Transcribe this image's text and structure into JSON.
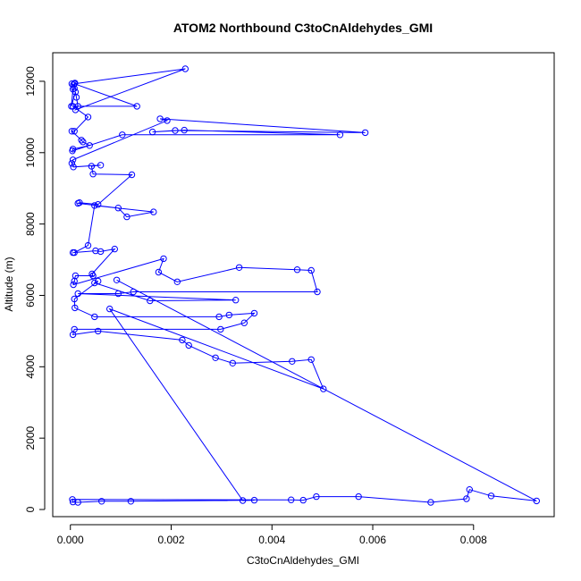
{
  "chart_data": {
    "type": "line",
    "title": "ATOM2 Northbound C3toCnAldehydes_GMI",
    "xlabel": "C3toCnAldehydes_GMI",
    "ylabel": "Altitude (m)",
    "xlim": [
      -0.00035,
      0.0096
    ],
    "ylim": [
      -200,
      12800
    ],
    "x_ticks": [
      0,
      0.002,
      0.004,
      0.006,
      0.008
    ],
    "x_tick_labels": [
      "0.000",
      "0.002",
      "0.004",
      "0.006",
      "0.008"
    ],
    "y_ticks": [
      0,
      2000,
      4000,
      6000,
      8000,
      10000,
      12000
    ],
    "y_tick_labels": [
      "0",
      "2000",
      "4000",
      "6000",
      "8000",
      "10000",
      "12000"
    ],
    "grid": false,
    "series": [
      {
        "color": "#0000ff",
        "points": [
          [
            3e-05,
            11930
          ],
          [
            6e-05,
            11900
          ],
          [
            9e-05,
            11950
          ],
          [
            8e-05,
            11800
          ],
          [
            5e-05,
            11780
          ],
          [
            2e-05,
            11300
          ],
          [
            0.0001,
            11700
          ],
          [
            0.00012,
            11550
          ],
          [
            0.00015,
            11300
          ],
          [
            0.0001,
            11200
          ],
          [
            0.00228,
            12350
          ],
          [
            8e-05,
            11930
          ],
          [
            0.00132,
            11300
          ],
          [
            5e-05,
            11300
          ],
          [
            0.00035,
            11000
          ],
          [
            8e-05,
            10600
          ],
          [
            3e-05,
            10600
          ],
          [
            0.00022,
            10350
          ],
          [
            0.00025,
            10300
          ],
          [
            0.00038,
            10200
          ],
          [
            5e-05,
            10100
          ],
          [
            4e-05,
            10050
          ],
          [
            0.00103,
            10500
          ],
          [
            0.00535,
            10500
          ],
          [
            0.00226,
            10630
          ],
          [
            0.00163,
            10580
          ],
          [
            0.00208,
            10620
          ],
          [
            0.00585,
            10560
          ],
          [
            0.00178,
            10950
          ],
          [
            0.00192,
            10900
          ],
          [
            5e-05,
            9800
          ],
          [
            3e-05,
            9700
          ],
          [
            6e-05,
            9600
          ],
          [
            0.0006,
            9650
          ],
          [
            0.00042,
            9620
          ],
          [
            0.00045,
            9400
          ],
          [
            0.00122,
            9380
          ],
          [
            0.00055,
            8550
          ],
          [
            0.00018,
            8600
          ],
          [
            0.00015,
            8580
          ],
          [
            0.00095,
            8450
          ],
          [
            0.00112,
            8200
          ],
          [
            0.00165,
            8340
          ],
          [
            0.00048,
            8520
          ],
          [
            0.00035,
            7400
          ],
          [
            8e-05,
            7200
          ],
          [
            5e-05,
            7200
          ],
          [
            0.0005,
            7250
          ],
          [
            0.0006,
            7230
          ],
          [
            0.00088,
            7300
          ],
          [
            0.00043,
            6600
          ],
          [
            0.00045,
            6550
          ],
          [
            0.0001,
            6550
          ],
          [
            8e-05,
            6400
          ],
          [
            6e-05,
            6300
          ],
          [
            0.00185,
            7030
          ],
          [
            0.00175,
            6650
          ],
          [
            0.00212,
            6380
          ],
          [
            0.00335,
            6780
          ],
          [
            0.0045,
            6720
          ],
          [
            0.00478,
            6700
          ],
          [
            0.0049,
            6100
          ],
          [
            0.00125,
            6100
          ],
          [
            0.00095,
            6050
          ],
          [
            0.00015,
            6050
          ],
          [
            0.00328,
            5870
          ],
          [
            0.00158,
            5850
          ],
          [
            0.00048,
            6350
          ],
          [
            0.00055,
            6400
          ],
          [
            8e-05,
            5900
          ],
          [
            9e-05,
            5650
          ],
          [
            0.00048,
            5400
          ],
          [
            0.00295,
            5400
          ],
          [
            0.00315,
            5450
          ],
          [
            0.00365,
            5500
          ],
          [
            0.00345,
            5230
          ],
          [
            0.00298,
            5050
          ],
          [
            8e-05,
            5050
          ],
          [
            5e-05,
            4900
          ],
          [
            0.00055,
            5000
          ],
          [
            0.00222,
            4750
          ],
          [
            0.00235,
            4600
          ],
          [
            0.00288,
            4250
          ],
          [
            0.00322,
            4100
          ],
          [
            0.0044,
            4150
          ],
          [
            0.00478,
            4200
          ],
          [
            0.00502,
            3380
          ],
          [
            0.00078,
            5620
          ],
          [
            0.00342,
            250
          ],
          [
            0.00365,
            260
          ],
          [
            0.0012,
            230
          ],
          [
            0.00062,
            230
          ],
          [
            0.00015,
            200
          ],
          [
            5e-05,
            210
          ],
          [
            4e-05,
            280
          ],
          [
            0.00438,
            270
          ],
          [
            0.00462,
            260
          ],
          [
            0.00488,
            360
          ],
          [
            0.00572,
            360
          ],
          [
            0.00715,
            200
          ],
          [
            0.00786,
            300
          ],
          [
            0.00792,
            560
          ],
          [
            0.00835,
            380
          ],
          [
            0.00925,
            240
          ],
          [
            0.00092,
            6430
          ]
        ]
      }
    ]
  }
}
